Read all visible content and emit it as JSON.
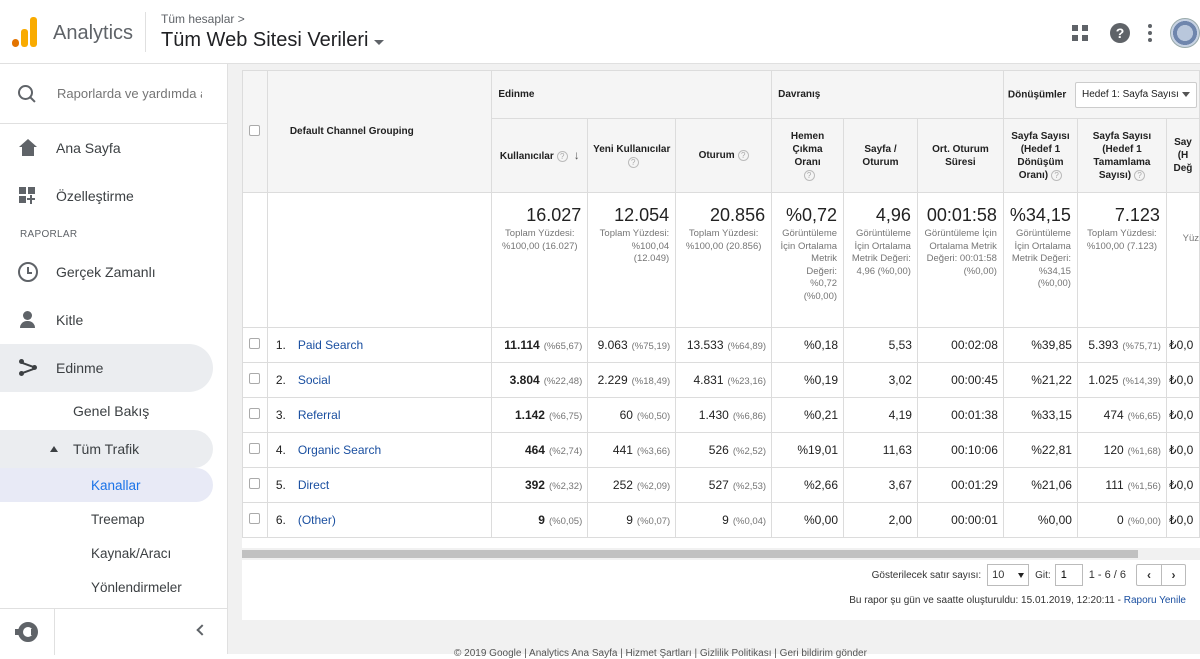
{
  "topbar": {
    "product": "Analytics",
    "breadcrumb": "Tüm hesaplar >",
    "view_title": "Tüm Web Sitesi Verileri",
    "icons": [
      "apps-icon",
      "help-icon",
      "more-vert-icon",
      "avatar"
    ]
  },
  "sidebar": {
    "search_placeholder": "Raporlarda ve yardımda ara",
    "home": "Ana Sayfa",
    "customization": "Özelleştirme",
    "reports_label": "RAPORLAR",
    "realtime": "Gerçek Zamanlı",
    "audience": "Kitle",
    "acquisition": "Edinme",
    "overview": "Genel Bakış",
    "all_traffic": "Tüm Trafik",
    "channels": "Kanallar",
    "treemap": "Treemap",
    "source_medium": "Kaynak/Aracı",
    "referrals": "Yönlendirmeler"
  },
  "table": {
    "dimension_header": "Default Channel Grouping",
    "group_acquisition": "Edinme",
    "group_behavior": "Davranış",
    "group_conversions": "Dönüşümler",
    "goal_select": "Hedef 1: Sayfa Sayısı",
    "columns": {
      "users": "Kullanıcılar",
      "new_users": "Yeni Kullanıcılar",
      "sessions": "Oturum",
      "bounce": "Hemen Çıkma Oranı",
      "pages_session": "Sayfa / Oturum",
      "avg_duration": "Ort. Oturum Süresi",
      "conv_rate": "Sayfa Sayısı (Hedef 1 Dönüşüm Oranı)",
      "completions": "Sayfa Sayısı (Hedef 1 Tamamlama Sayısı)",
      "value_partial": "Say (H Değ"
    },
    "totals": {
      "users": "16.027",
      "users_sub": "Toplam Yüzdesi: %100,00 (16.027)",
      "new_users": "12.054",
      "new_users_sub": "Toplam Yüzdesi: %100,04 (12.049)",
      "sessions": "20.856",
      "sessions_sub": "Toplam Yüzdesi: %100,00 (20.856)",
      "bounce": "%0,72",
      "bounce_sub": "Görüntüleme İçin Ortalama Metrik Değeri: %0,72 (%0,00)",
      "pages_session": "4,96",
      "pages_session_sub": "Görüntüleme İçin Ortalama Metrik Değeri: 4,96 (%0,00)",
      "avg_duration": "00:01:58",
      "avg_duration_sub": "Görüntüleme İçin Ortalama Metrik Değeri: 00:01:58 (%0,00)",
      "conv_rate": "%34,15",
      "conv_rate_sub": "Görüntüleme İçin Ortalama Metrik Değeri: %34,15 (%0,00)",
      "completions": "7.123",
      "completions_sub": "Toplam Yüzdesi: %100,00 (7.123)",
      "value_partial_sub": "Yüz"
    },
    "rows": [
      {
        "num": "1.",
        "channel": "Paid Search",
        "users": "11.114",
        "users_pct": "(%65,67)",
        "new_users": "9.063",
        "new_users_pct": "(%75,19)",
        "sessions": "13.533",
        "sessions_pct": "(%64,89)",
        "bounce": "%0,18",
        "pages": "5,53",
        "duration": "00:02:08",
        "conv": "%39,85",
        "comp": "5.393",
        "comp_pct": "(%75,71)",
        "value": "₺0,0"
      },
      {
        "num": "2.",
        "channel": "Social",
        "users": "3.804",
        "users_pct": "(%22,48)",
        "new_users": "2.229",
        "new_users_pct": "(%18,49)",
        "sessions": "4.831",
        "sessions_pct": "(%23,16)",
        "bounce": "%0,19",
        "pages": "3,02",
        "duration": "00:00:45",
        "conv": "%21,22",
        "comp": "1.025",
        "comp_pct": "(%14,39)",
        "value": "₺0,0"
      },
      {
        "num": "3.",
        "channel": "Referral",
        "users": "1.142",
        "users_pct": "(%6,75)",
        "new_users": "60",
        "new_users_pct": "(%0,50)",
        "sessions": "1.430",
        "sessions_pct": "(%6,86)",
        "bounce": "%0,21",
        "pages": "4,19",
        "duration": "00:01:38",
        "conv": "%33,15",
        "comp": "474",
        "comp_pct": "(%6,65)",
        "value": "₺0,0"
      },
      {
        "num": "4.",
        "channel": "Organic Search",
        "users": "464",
        "users_pct": "(%2,74)",
        "new_users": "441",
        "new_users_pct": "(%3,66)",
        "sessions": "526",
        "sessions_pct": "(%2,52)",
        "bounce": "%19,01",
        "pages": "11,63",
        "duration": "00:10:06",
        "conv": "%22,81",
        "comp": "120",
        "comp_pct": "(%1,68)",
        "value": "₺0,0"
      },
      {
        "num": "5.",
        "channel": "Direct",
        "users": "392",
        "users_pct": "(%2,32)",
        "new_users": "252",
        "new_users_pct": "(%2,09)",
        "sessions": "527",
        "sessions_pct": "(%2,53)",
        "bounce": "%2,66",
        "pages": "3,67",
        "duration": "00:01:29",
        "conv": "%21,06",
        "comp": "111",
        "comp_pct": "(%1,56)",
        "value": "₺0,0"
      },
      {
        "num": "6.",
        "channel": "(Other)",
        "users": "9",
        "users_pct": "(%0,05)",
        "new_users": "9",
        "new_users_pct": "(%0,07)",
        "sessions": "9",
        "sessions_pct": "(%0,04)",
        "bounce": "%0,00",
        "pages": "2,00",
        "duration": "00:00:01",
        "conv": "%0,00",
        "comp": "0",
        "comp_pct": "(%0,00)",
        "value": "₺0,0"
      }
    ]
  },
  "footer": {
    "rows_label": "Gösterilecek satır sayısı:",
    "rows_value": "10",
    "goto_label": "Git:",
    "goto_value": "1",
    "range": "1 - 6 / 6",
    "prev": "‹",
    "next": "›",
    "created_text": "Bu rapor şu gün ve saatte oluşturuldu: 15.01.2019, 12:20:11 -",
    "refresh_link": "Raporu Yenile",
    "copyright": "© 2019 Google | Analytics Ana Sayfa | Hizmet Şartları | Gizlilik Politikası | Geri bildirim gönder"
  }
}
